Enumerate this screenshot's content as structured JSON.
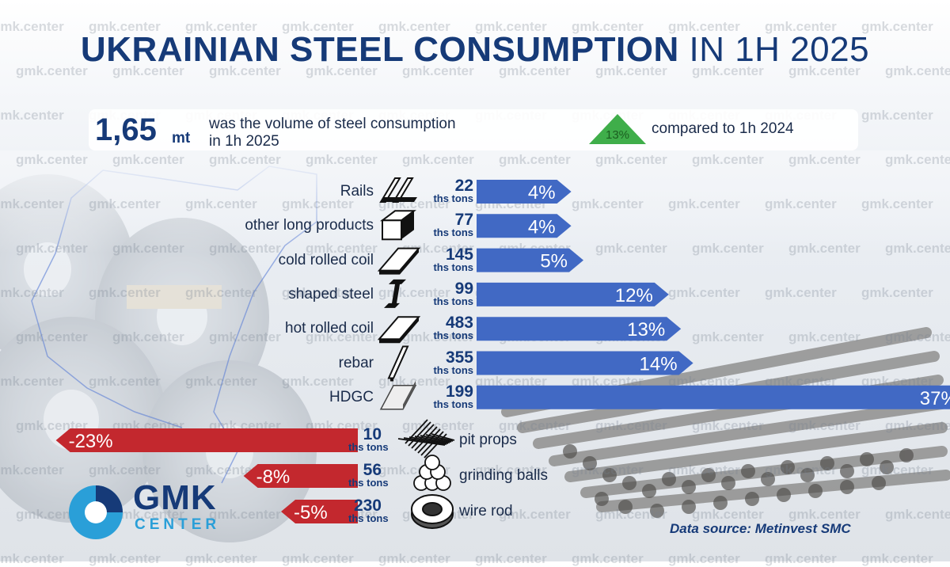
{
  "title": {
    "bold": "UKRAINIAN STEEL CONSUMPTION",
    "light": "IN 1H 2025"
  },
  "watermark": "gmk.center",
  "summary": {
    "value": "1,65",
    "unit": "mt",
    "line1": "was the volume of steel consumption",
    "line2": "in 1h 2025",
    "change": "13%",
    "change_text": "compared to 1h 2024"
  },
  "unit_label": "ths tons",
  "colors": {
    "positive": "#4169c4",
    "negative": "#c3282e",
    "title": "#163a78",
    "up_arrow": "#3fae4a",
    "logo_blue": "#2a9fd8"
  },
  "chart_data": {
    "type": "bar",
    "unit": "ths tons",
    "positive": [
      {
        "category": "Rails",
        "volume": 22,
        "change_pct": 4,
        "label": "4%",
        "icon": "rail-icon"
      },
      {
        "category": "other long products",
        "volume": 77,
        "change_pct": 4,
        "label": "4%",
        "icon": "square-bar-icon"
      },
      {
        "category": "cold rolled coil",
        "volume": 145,
        "change_pct": 5,
        "label": "5%",
        "icon": "sheet-icon"
      },
      {
        "category": "shaped steel",
        "volume": 99,
        "change_pct": 12,
        "label": "12%",
        "icon": "i-beam-icon"
      },
      {
        "category": "hot rolled coil",
        "volume": 483,
        "change_pct": 13,
        "label": "13%",
        "icon": "plate-icon"
      },
      {
        "category": "rebar",
        "volume": 355,
        "change_pct": 14,
        "label": "14%",
        "icon": "rebar-icon"
      },
      {
        "category": "HDGC",
        "volume": 199,
        "change_pct": 37,
        "label": "37%",
        "icon": "galvanized-sheet-icon"
      }
    ],
    "negative": [
      {
        "category": "pit props",
        "volume": 10,
        "change_pct": -23,
        "label": "-23%",
        "icon": "mesh-icon"
      },
      {
        "category": "grinding balls",
        "volume": 56,
        "change_pct": -8,
        "label": "-8%",
        "icon": "balls-icon"
      },
      {
        "category": "wire rod",
        "volume": 230,
        "change_pct": -5,
        "label": "-5%",
        "icon": "wire-coil-icon"
      }
    ]
  },
  "logo": {
    "main": "GMK",
    "sub": "CENTER"
  },
  "source": "Data source: Metinvest SMC"
}
